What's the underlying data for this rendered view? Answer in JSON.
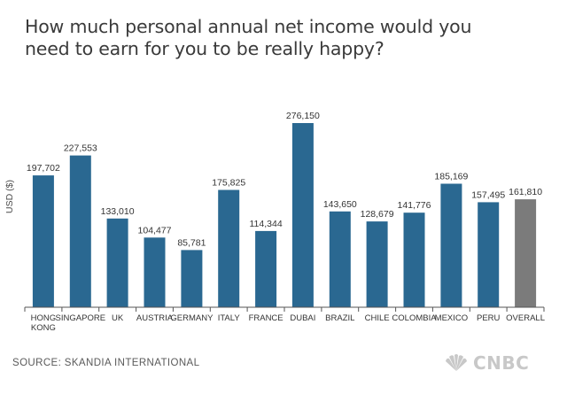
{
  "chart_data": {
    "type": "bar",
    "title": "How much personal annual net income would you need to earn for you to be really happy?",
    "ylabel": "USD ($)",
    "xlabel": "",
    "categories": [
      "HONG KONG",
      "SINGAPORE",
      "UK",
      "AUSTRIA",
      "GERMANY",
      "ITALY",
      "FRANCE",
      "DUBAI",
      "BRAZIL",
      "CHILE",
      "COLOMBIA",
      "MEXICO",
      "PERU",
      "OVERALL"
    ],
    "values": [
      197702,
      227553,
      133010,
      104477,
      85781,
      175825,
      114344,
      276150,
      143650,
      128679,
      141776,
      185169,
      157495,
      161810
    ],
    "value_labels": [
      "197,702",
      "227,553",
      "133,010",
      "104,477",
      "85,781",
      "175,825",
      "114,344",
      "276,150",
      "143,650",
      "128,679",
      "141,776",
      "185,169",
      "157,495",
      "161,810"
    ],
    "ylim": [
      0,
      300000
    ],
    "grid": false,
    "colors": {
      "bar": "#2a6891",
      "overall_bar": "#7b7b7b"
    }
  },
  "source": "SOURCE: SKANDIA INTERNATIONAL",
  "brand": {
    "name": "CNBC",
    "icon": "peacock-icon"
  }
}
